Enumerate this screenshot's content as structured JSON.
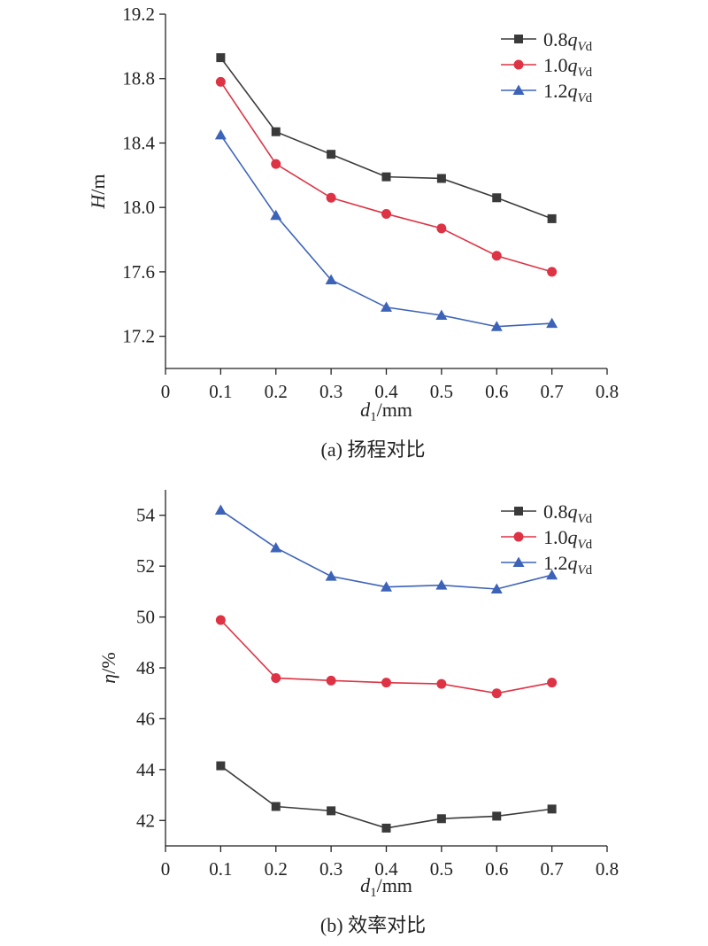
{
  "colors": {
    "series_0.8": "#3a3a3a",
    "series_1.0": "#dd3344",
    "series_1.2": "#3d63b8",
    "axis": "#222222"
  },
  "chart_data": [
    {
      "type": "line",
      "caption": "(a) 扬程对比",
      "xlabel": {
        "main": "d",
        "sub": "1",
        "unit": "/mm"
      },
      "ylabel": {
        "main": "H",
        "unit": "/m"
      },
      "xlim": [
        0,
        0.8
      ],
      "ylim": [
        17.0,
        19.2
      ],
      "xticks": [
        0,
        0.1,
        0.2,
        0.3,
        0.4,
        0.5,
        0.6,
        0.7,
        0.8
      ],
      "xtick_labels": [
        "0",
        "0.1",
        "0.2",
        "0.3",
        "0.4",
        "0.5",
        "0.6",
        "0.7",
        "0.8"
      ],
      "yticks": [
        17.2,
        17.6,
        18.0,
        18.4,
        18.8,
        19.2
      ],
      "ytick_labels": [
        "17.2",
        "17.6",
        "18.0",
        "18.4",
        "18.8",
        "19.2"
      ],
      "legend_position": "top-right",
      "x": [
        0.1,
        0.2,
        0.3,
        0.4,
        0.5,
        0.6,
        0.7
      ],
      "series": [
        {
          "name": "0.8",
          "marker": "square",
          "color_key": "series_0.8",
          "values": [
            18.93,
            18.47,
            18.33,
            18.19,
            18.18,
            18.06,
            17.93
          ]
        },
        {
          "name": "1.0",
          "marker": "circle",
          "color_key": "series_1.0",
          "values": [
            18.78,
            18.27,
            18.06,
            17.96,
            17.87,
            17.7,
            17.6
          ]
        },
        {
          "name": "1.2",
          "marker": "triangle",
          "color_key": "series_1.2",
          "values": [
            18.45,
            17.95,
            17.55,
            17.38,
            17.33,
            17.26,
            17.28
          ]
        }
      ]
    },
    {
      "type": "line",
      "caption": "(b) 效率对比",
      "xlabel": {
        "main": "d",
        "sub": "1",
        "unit": "/mm"
      },
      "ylabel": {
        "main": "η",
        "unit": "/%"
      },
      "xlim": [
        0,
        0.8
      ],
      "ylim": [
        41,
        55
      ],
      "xticks": [
        0,
        0.1,
        0.2,
        0.3,
        0.4,
        0.5,
        0.6,
        0.7,
        0.8
      ],
      "xtick_labels": [
        "0",
        "0.1",
        "0.2",
        "0.3",
        "0.4",
        "0.5",
        "0.6",
        "0.7",
        "0.8"
      ],
      "yticks": [
        42,
        44,
        46,
        48,
        50,
        52,
        54
      ],
      "ytick_labels": [
        "42",
        "44",
        "46",
        "48",
        "50",
        "52",
        "54"
      ],
      "legend_position": "top-right",
      "x": [
        0.1,
        0.2,
        0.3,
        0.4,
        0.5,
        0.6,
        0.7
      ],
      "series": [
        {
          "name": "0.8",
          "marker": "square",
          "color_key": "series_0.8",
          "values": [
            44.15,
            42.55,
            42.38,
            41.7,
            42.07,
            42.17,
            42.45
          ]
        },
        {
          "name": "1.0",
          "marker": "circle",
          "color_key": "series_1.0",
          "values": [
            49.88,
            47.6,
            47.5,
            47.42,
            47.37,
            47.0,
            47.42
          ]
        },
        {
          "name": "1.2",
          "marker": "triangle",
          "color_key": "series_1.2",
          "values": [
            54.2,
            52.72,
            51.6,
            51.18,
            51.25,
            51.1,
            51.65
          ]
        }
      ]
    }
  ],
  "legend_symbol": {
    "q": "q",
    "sub": "Vd"
  }
}
